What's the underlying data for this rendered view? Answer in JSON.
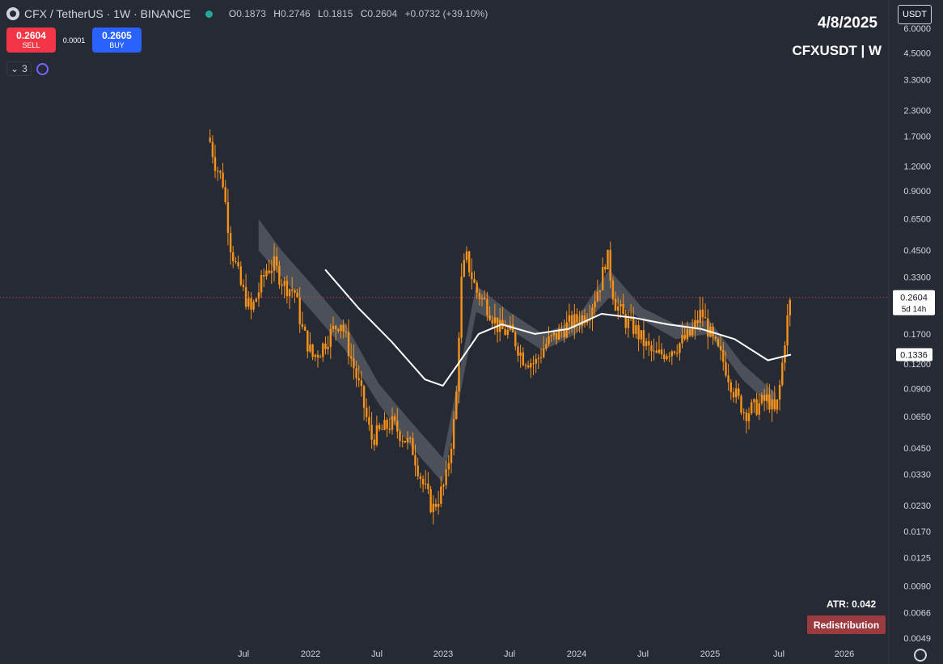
{
  "header": {
    "symbol": "CFX / TetherUS · 1W · BINANCE",
    "open_key": "O",
    "open": "0.1873",
    "high_key": "H",
    "high": "0.2746",
    "low_key": "L",
    "low": "0.1815",
    "close_key": "C",
    "close": "0.2604",
    "change": "+0.0732 (+39.10%)"
  },
  "trade": {
    "sell_price": "0.2604",
    "sell_label": "SELL",
    "spread": "0.0001",
    "buy_price": "0.2605",
    "buy_label": "BUY"
  },
  "indicators": {
    "count": "3"
  },
  "overlay": {
    "date": "4/8/2025",
    "pair": "CFXUSDT | W",
    "currency": "USDT",
    "atr": "ATR: 0.042",
    "badge": "Redistribution"
  },
  "colors": {
    "background": "#262a35",
    "candle": "#f7931a",
    "ma_line": "#ffffff",
    "band": "#5a5d66",
    "sell": "#f23645",
    "buy": "#2962ff",
    "badge": "#9b3a3f"
  },
  "chart_data": {
    "type": "candlestick",
    "scale": "log",
    "y_tick_labels": [
      "6.0000",
      "4.5000",
      "3.3000",
      "2.3000",
      "1.7000",
      "1.2000",
      "0.9000",
      "0.6500",
      "0.4500",
      "0.3300",
      "0.2300",
      "0.1700",
      "0.1200",
      "0.0900",
      "0.0650",
      "0.0450",
      "0.0330",
      "0.0230",
      "0.0170",
      "0.0125",
      "0.0090",
      "0.0066",
      "0.0049"
    ],
    "x_tick_labels": [
      "Jul",
      "2022",
      "Jul",
      "2023",
      "Jul",
      "2024",
      "Jul",
      "2025",
      "Jul",
      "2026"
    ],
    "current_price": "0.2604",
    "current_countdown": "5d 14h",
    "ma_value_label": "0.1336",
    "price_path": [
      [
        "2021-04-01",
        1.6
      ],
      [
        "2021-04-15",
        1.25
      ],
      [
        "2021-05-06",
        1.0
      ],
      [
        "2021-05-27",
        0.48
      ],
      [
        "2021-06-24",
        0.3
      ],
      [
        "2021-07-22",
        0.22
      ],
      [
        "2021-08-12",
        0.28
      ],
      [
        "2021-09-02",
        0.36
      ],
      [
        "2021-09-23",
        0.38
      ],
      [
        "2021-10-21",
        0.3
      ],
      [
        "2021-11-18",
        0.28
      ],
      [
        "2021-12-09",
        0.18
      ],
      [
        "2022-01-06",
        0.13
      ],
      [
        "2022-01-27",
        0.14
      ],
      [
        "2022-02-24",
        0.17
      ],
      [
        "2022-03-24",
        0.2
      ],
      [
        "2022-04-21",
        0.13
      ],
      [
        "2022-05-19",
        0.085
      ],
      [
        "2022-06-16",
        0.05
      ],
      [
        "2022-07-14",
        0.055
      ],
      [
        "2022-08-11",
        0.06
      ],
      [
        "2022-09-08",
        0.052
      ],
      [
        "2022-10-06",
        0.045
      ],
      [
        "2022-11-03",
        0.03
      ],
      [
        "2022-12-01",
        0.022
      ],
      [
        "2023-01-05",
        0.03
      ],
      [
        "2023-02-02",
        0.07
      ],
      [
        "2023-02-16",
        0.3
      ],
      [
        "2023-03-02",
        0.42
      ],
      [
        "2023-03-30",
        0.28
      ],
      [
        "2023-04-27",
        0.24
      ],
      [
        "2023-06-01",
        0.18
      ],
      [
        "2023-07-06",
        0.17
      ],
      [
        "2023-08-03",
        0.13
      ],
      [
        "2023-09-07",
        0.12
      ],
      [
        "2023-10-05",
        0.15
      ],
      [
        "2023-11-09",
        0.17
      ],
      [
        "2023-12-07",
        0.19
      ],
      [
        "2024-01-04",
        0.2
      ],
      [
        "2024-02-01",
        0.22
      ],
      [
        "2024-03-07",
        0.32
      ],
      [
        "2024-03-21",
        0.44
      ],
      [
        "2024-04-11",
        0.25
      ],
      [
        "2024-05-09",
        0.2
      ],
      [
        "2024-06-06",
        0.18
      ],
      [
        "2024-07-04",
        0.15
      ],
      [
        "2024-08-01",
        0.13
      ],
      [
        "2024-09-05",
        0.14
      ],
      [
        "2024-10-03",
        0.15
      ],
      [
        "2024-11-07",
        0.17
      ],
      [
        "2024-12-05",
        0.22
      ],
      [
        "2025-01-02",
        0.16
      ],
      [
        "2025-02-06",
        0.12
      ],
      [
        "2025-03-06",
        0.085
      ],
      [
        "2025-04-03",
        0.068
      ],
      [
        "2025-05-01",
        0.072
      ],
      [
        "2025-06-05",
        0.08
      ],
      [
        "2025-06-26",
        0.066
      ],
      [
        "2025-07-10",
        0.1
      ],
      [
        "2025-07-24",
        0.18
      ],
      [
        "2025-08-07",
        0.26
      ]
    ],
    "ma_line": [
      [
        "2022-02-10",
        0.36
      ],
      [
        "2022-05-12",
        0.23
      ],
      [
        "2022-08-11",
        0.155
      ],
      [
        "2022-11-10",
        0.1
      ],
      [
        "2022-12-29",
        0.093
      ],
      [
        "2023-02-09",
        0.12
      ],
      [
        "2023-04-06",
        0.17
      ],
      [
        "2023-06-08",
        0.19
      ],
      [
        "2023-09-07",
        0.17
      ],
      [
        "2023-12-07",
        0.18
      ],
      [
        "2024-03-07",
        0.215
      ],
      [
        "2024-06-06",
        0.205
      ],
      [
        "2024-09-05",
        0.19
      ],
      [
        "2024-12-05",
        0.18
      ],
      [
        "2025-03-06",
        0.16
      ],
      [
        "2025-06-05",
        0.125
      ],
      [
        "2025-08-07",
        0.1336
      ]
    ],
    "band_upper": [
      [
        "2021-08-12",
        0.65
      ],
      [
        "2021-10-14",
        0.45
      ],
      [
        "2022-01-06",
        0.3
      ],
      [
        "2022-04-07",
        0.19
      ],
      [
        "2022-07-07",
        0.095
      ],
      [
        "2022-10-06",
        0.06
      ],
      [
        "2022-12-29",
        0.04
      ],
      [
        "2023-03-30",
        0.3
      ],
      [
        "2023-06-29",
        0.22
      ],
      [
        "2023-09-28",
        0.17
      ],
      [
        "2023-12-28",
        0.2
      ],
      [
        "2024-03-28",
        0.36
      ],
      [
        "2024-06-27",
        0.23
      ],
      [
        "2024-09-26",
        0.19
      ],
      [
        "2024-12-26",
        0.2
      ],
      [
        "2025-03-27",
        0.12
      ],
      [
        "2025-06-26",
        0.085
      ]
    ],
    "band_lower": [
      [
        "2021-08-12",
        0.45
      ],
      [
        "2021-10-14",
        0.33
      ],
      [
        "2022-01-06",
        0.22
      ],
      [
        "2022-04-07",
        0.14
      ],
      [
        "2022-07-07",
        0.075
      ],
      [
        "2022-10-06",
        0.045
      ],
      [
        "2022-12-29",
        0.03
      ],
      [
        "2023-03-30",
        0.22
      ],
      [
        "2023-06-29",
        0.18
      ],
      [
        "2023-09-28",
        0.14
      ],
      [
        "2023-12-28",
        0.17
      ],
      [
        "2024-03-28",
        0.26
      ],
      [
        "2024-06-27",
        0.2
      ],
      [
        "2024-09-26",
        0.16
      ],
      [
        "2024-12-26",
        0.17
      ],
      [
        "2025-03-27",
        0.1
      ],
      [
        "2025-06-26",
        0.07
      ]
    ]
  }
}
